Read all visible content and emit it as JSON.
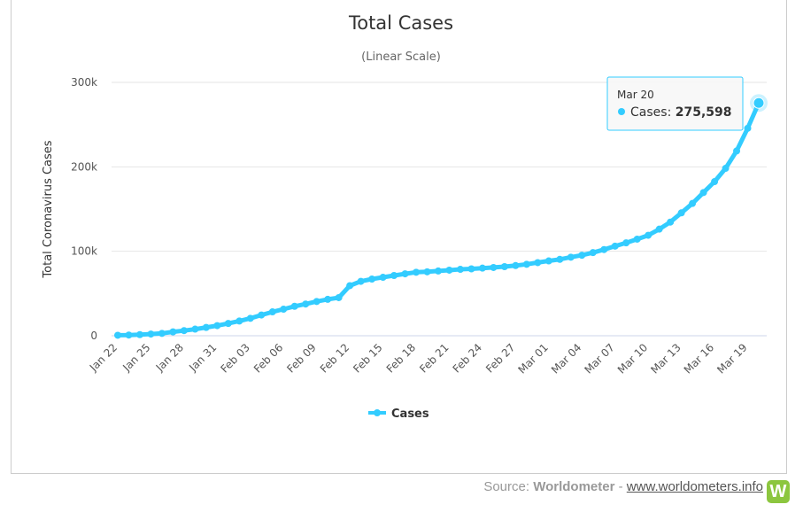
{
  "chart_data": {
    "type": "line",
    "title": "Total Cases",
    "subtitle": "(Linear Scale)",
    "xlabel": "",
    "ylabel": "Total Coronavirus Cases",
    "ylim": [
      0,
      300000
    ],
    "y_ticks": [
      "0",
      "100k",
      "200k",
      "300k"
    ],
    "x_tick_labels": [
      "Jan 22",
      "Jan 25",
      "Jan 28",
      "Jan 31",
      "Feb 03",
      "Feb 06",
      "Feb 09",
      "Feb 12",
      "Feb 15",
      "Feb 18",
      "Feb 21",
      "Feb 24",
      "Feb 27",
      "Mar 01",
      "Mar 04",
      "Mar 07",
      "Mar 10",
      "Mar 13",
      "Mar 16",
      "Mar 19"
    ],
    "grid": true,
    "legend_position": "bottom-center",
    "series": [
      {
        "name": "Cases",
        "color": "#33ccff",
        "x": [
          "Jan 22",
          "Jan 23",
          "Jan 24",
          "Jan 25",
          "Jan 26",
          "Jan 27",
          "Jan 28",
          "Jan 29",
          "Jan 30",
          "Jan 31",
          "Feb 01",
          "Feb 02",
          "Feb 03",
          "Feb 04",
          "Feb 05",
          "Feb 06",
          "Feb 07",
          "Feb 08",
          "Feb 09",
          "Feb 10",
          "Feb 11",
          "Feb 12",
          "Feb 13",
          "Feb 14",
          "Feb 15",
          "Feb 16",
          "Feb 17",
          "Feb 18",
          "Feb 19",
          "Feb 20",
          "Feb 21",
          "Feb 22",
          "Feb 23",
          "Feb 24",
          "Feb 25",
          "Feb 26",
          "Feb 27",
          "Feb 28",
          "Feb 29",
          "Mar 01",
          "Mar 02",
          "Mar 03",
          "Mar 04",
          "Mar 05",
          "Mar 06",
          "Mar 07",
          "Mar 08",
          "Mar 09",
          "Mar 10",
          "Mar 11",
          "Mar 12",
          "Mar 13",
          "Mar 14",
          "Mar 15",
          "Mar 16",
          "Mar 17",
          "Mar 18",
          "Mar 19",
          "Mar 20"
        ],
        "values": [
          580,
          845,
          1317,
          2015,
          2800,
          4581,
          6058,
          7813,
          9823,
          11950,
          14553,
          17391,
          20630,
          24545,
          28266,
          31439,
          34876,
          37552,
          40553,
          43099,
          45134,
          59287,
          64438,
          67100,
          69197,
          71329,
          73332,
          75184,
          75700,
          76677,
          77673,
          78651,
          79205,
          80087,
          80828,
          81820,
          83112,
          84615,
          86604,
          88585,
          90443,
          93016,
          95314,
          98425,
          102050,
          106099,
          109991,
          114381,
          118948,
          126214,
          134576,
          145483,
          156653,
          169593,
          182490,
          198234,
          218815,
          245630,
          275598
        ]
      }
    ],
    "tooltip": {
      "date": "Mar 20",
      "series_label": "Cases",
      "value": "275,598"
    }
  },
  "footer": {
    "source_prefix": "Source: ",
    "source_name": "Worldometer",
    "separator": " - ",
    "link_text": "www.worldometers.info",
    "logo_letter": "W"
  }
}
